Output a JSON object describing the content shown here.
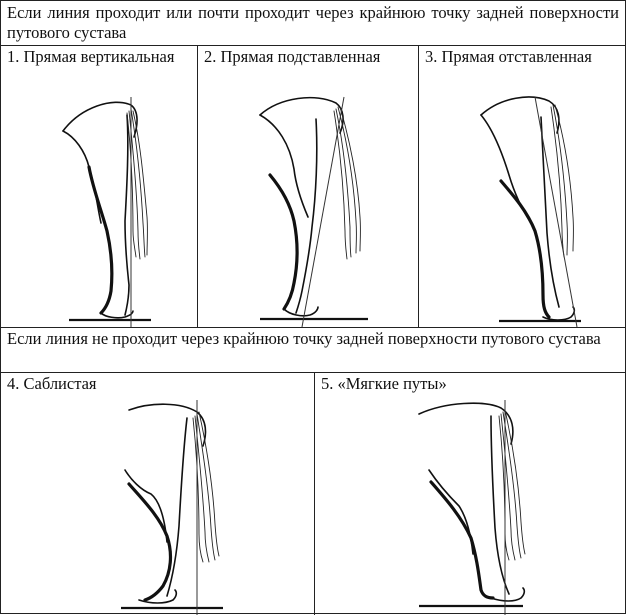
{
  "sections": [
    {
      "heading": "Если линия проходит или почти проходит через крайнюю точку задней поверхности путового сустава",
      "cells": [
        {
          "label": "1. Прямая вертикальная"
        },
        {
          "label": "2. Прямая подставленная"
        },
        {
          "label": "3. Прямая отставленная"
        }
      ]
    },
    {
      "heading": "Если линия не проходит через крайнюю точку задней поверхности путового сустава",
      "cells": [
        {
          "label": "4. Саблистая"
        },
        {
          "label": "5. «Мягкие путы»"
        }
      ]
    }
  ]
}
